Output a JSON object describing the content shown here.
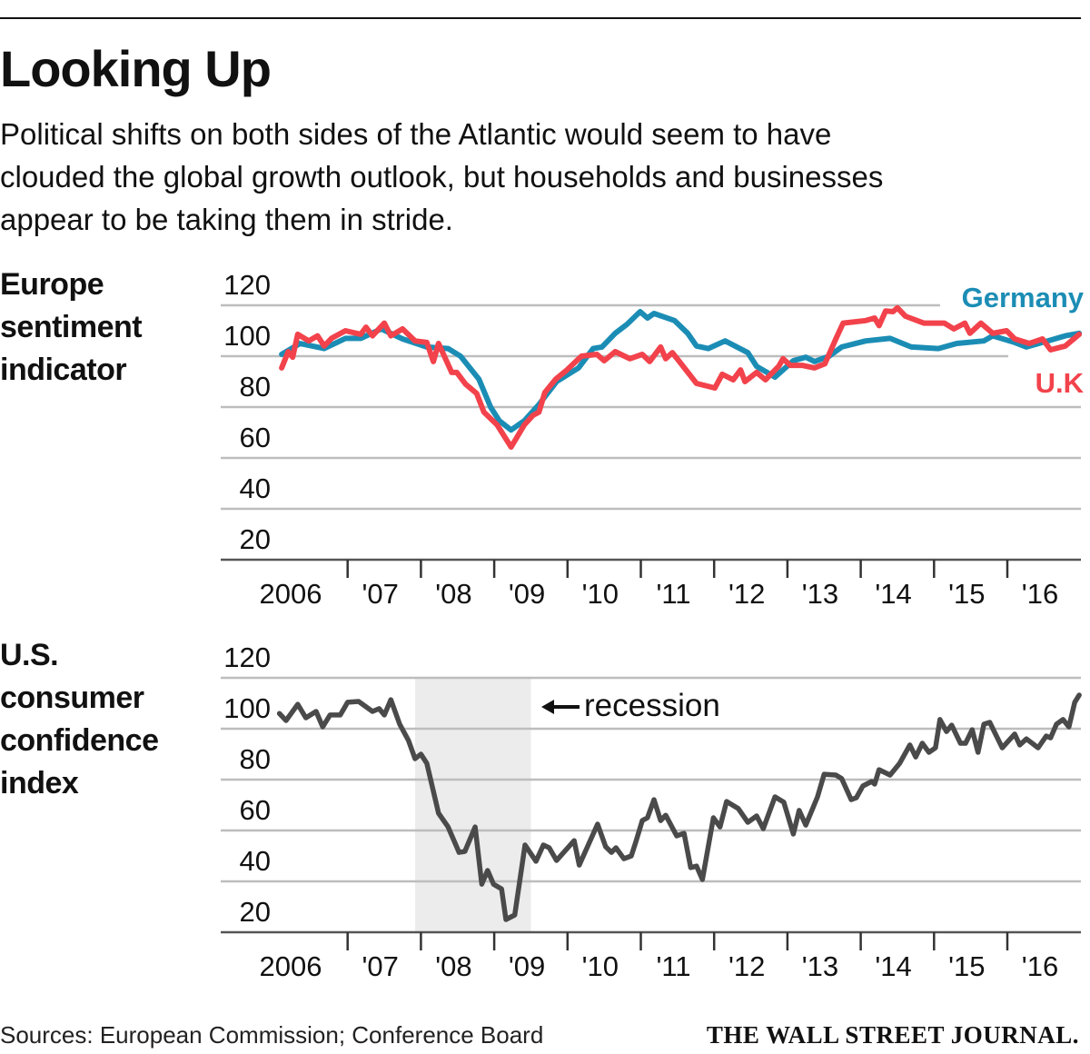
{
  "header": {
    "title": "Looking Up",
    "subtitle_lines": [
      "Political shifts on both sides of the Atlantic would seem to have",
      "clouded the global growth outlook, but households and businesses",
      "appear to be taking them in stride."
    ]
  },
  "footer": {
    "sources": "Sources: European Commission; Conference Board",
    "publisher": "THE WALL STREET JOURNAL."
  },
  "chart_data": [
    {
      "type": "line",
      "title_lines": [
        "Europe",
        "sentiment",
        "indicator"
      ],
      "xlabel": "",
      "ylabel": "",
      "ylim": [
        20,
        120
      ],
      "yticks": [
        120,
        100,
        80,
        60,
        40,
        20
      ],
      "ytick_labels": [
        "120",
        "100",
        "80",
        "60",
        "40",
        "20"
      ],
      "xlim": [
        2006,
        2017
      ],
      "xtick_labels": [
        "2006",
        "'07",
        "'08",
        "'09",
        "'10",
        "'11",
        "'12",
        "'13",
        "'14",
        "'15",
        "'16"
      ],
      "grid": true,
      "legend_placement": "right, inline labels",
      "series": [
        {
          "name": "Germany",
          "color": "#1b8db5",
          "points": [
            [
              2006.1,
              100.7
            ],
            [
              2006.35,
              105
            ],
            [
              2006.68,
              103
            ],
            [
              2006.97,
              107
            ],
            [
              2007.18,
              107
            ],
            [
              2007.46,
              110.7
            ],
            [
              2007.75,
              106.8
            ],
            [
              2008.08,
              103.6
            ],
            [
              2008.37,
              103
            ],
            [
              2008.54,
              100
            ],
            [
              2008.79,
              91
            ],
            [
              2008.95,
              80
            ],
            [
              2009.07,
              74.6
            ],
            [
              2009.23,
              71
            ],
            [
              2009.41,
              74.6
            ],
            [
              2009.61,
              81
            ],
            [
              2009.85,
              90
            ],
            [
              2010.15,
              95.4
            ],
            [
              2010.35,
              103
            ],
            [
              2010.47,
              103.6
            ],
            [
              2010.65,
              109
            ],
            [
              2010.81,
              112.5
            ],
            [
              2010.99,
              117.5
            ],
            [
              2011.09,
              115
            ],
            [
              2011.18,
              116.8
            ],
            [
              2011.46,
              114
            ],
            [
              2011.64,
              109
            ],
            [
              2011.76,
              104
            ],
            [
              2011.92,
              103
            ],
            [
              2012.15,
              106
            ],
            [
              2012.46,
              101.4
            ],
            [
              2012.58,
              96
            ],
            [
              2012.83,
              91.8
            ],
            [
              2013.08,
              98.2
            ],
            [
              2013.25,
              99.6
            ],
            [
              2013.37,
              97.9
            ],
            [
              2013.57,
              100
            ],
            [
              2013.74,
              103.6
            ],
            [
              2014.07,
              106
            ],
            [
              2014.4,
              107
            ],
            [
              2014.69,
              103.6
            ],
            [
              2015.06,
              103
            ],
            [
              2015.31,
              105
            ],
            [
              2015.68,
              106
            ],
            [
              2015.8,
              108
            ],
            [
              2016.1,
              105.4
            ],
            [
              2016.26,
              103.6
            ],
            [
              2016.55,
              106
            ],
            [
              2016.79,
              108
            ],
            [
              2016.98,
              109
            ]
          ]
        },
        {
          "name": "U.K",
          "color": "#f2424b",
          "points": [
            [
              2006.1,
              95.4
            ],
            [
              2006.19,
              101.8
            ],
            [
              2006.25,
              99.6
            ],
            [
              2006.32,
              108.6
            ],
            [
              2006.47,
              106
            ],
            [
              2006.59,
              108
            ],
            [
              2006.68,
              104
            ],
            [
              2006.78,
              107
            ],
            [
              2006.97,
              110
            ],
            [
              2007.18,
              108.6
            ],
            [
              2007.25,
              111.4
            ],
            [
              2007.34,
              108
            ],
            [
              2007.5,
              113
            ],
            [
              2007.59,
              108
            ],
            [
              2007.75,
              110.7
            ],
            [
              2007.92,
              106
            ],
            [
              2008.08,
              105.4
            ],
            [
              2008.17,
              97.9
            ],
            [
              2008.24,
              105
            ],
            [
              2008.42,
              93.6
            ],
            [
              2008.49,
              93.6
            ],
            [
              2008.61,
              89
            ],
            [
              2008.76,
              85.4
            ],
            [
              2008.86,
              78
            ],
            [
              2009.04,
              73
            ],
            [
              2009.23,
              64.3
            ],
            [
              2009.41,
              73
            ],
            [
              2009.53,
              76.8
            ],
            [
              2009.61,
              78
            ],
            [
              2009.69,
              85.7
            ],
            [
              2009.84,
              91
            ],
            [
              2009.98,
              94.3
            ],
            [
              2010.19,
              100
            ],
            [
              2010.4,
              100.7
            ],
            [
              2010.5,
              98.2
            ],
            [
              2010.65,
              101.8
            ],
            [
              2010.85,
              99
            ],
            [
              2011.02,
              100.7
            ],
            [
              2011.12,
              97.9
            ],
            [
              2011.27,
              103.6
            ],
            [
              2011.34,
              99
            ],
            [
              2011.43,
              101.4
            ],
            [
              2011.55,
              97
            ],
            [
              2011.76,
              89.3
            ],
            [
              2012.01,
              87.5
            ],
            [
              2012.11,
              92.9
            ],
            [
              2012.26,
              90.7
            ],
            [
              2012.36,
              94.6
            ],
            [
              2012.42,
              90
            ],
            [
              2012.58,
              93.6
            ],
            [
              2012.7,
              90.7
            ],
            [
              2012.88,
              96
            ],
            [
              2012.94,
              99
            ],
            [
              2013.04,
              96.4
            ],
            [
              2013.2,
              96.4
            ],
            [
              2013.37,
              95.4
            ],
            [
              2013.51,
              97
            ],
            [
              2013.66,
              106.8
            ],
            [
              2013.76,
              113
            ],
            [
              2014.07,
              114
            ],
            [
              2014.19,
              115
            ],
            [
              2014.25,
              112
            ],
            [
              2014.34,
              117.8
            ],
            [
              2014.44,
              117.5
            ],
            [
              2014.5,
              119
            ],
            [
              2014.61,
              115.7
            ],
            [
              2014.86,
              113
            ],
            [
              2015.14,
              113
            ],
            [
              2015.27,
              110.7
            ],
            [
              2015.42,
              113
            ],
            [
              2015.49,
              109
            ],
            [
              2015.64,
              113
            ],
            [
              2015.8,
              109
            ],
            [
              2015.99,
              110
            ],
            [
              2016.1,
              106.8
            ],
            [
              2016.3,
              105
            ],
            [
              2016.48,
              106.8
            ],
            [
              2016.59,
              102.5
            ],
            [
              2016.79,
              104
            ],
            [
              2016.98,
              108.6
            ]
          ]
        }
      ]
    },
    {
      "type": "line",
      "title_lines": [
        "U.S.",
        "consumer",
        "confidence",
        "index"
      ],
      "xlabel": "",
      "ylabel": "",
      "ylim": [
        20,
        120
      ],
      "yticks": [
        120,
        100,
        80,
        60,
        40,
        20
      ],
      "ytick_labels": [
        "120",
        "100",
        "80",
        "60",
        "40",
        "20"
      ],
      "xlim": [
        2006,
        2017
      ],
      "xtick_labels": [
        "2006",
        "'07",
        "'08",
        "'09",
        "'10",
        "'11",
        "'12",
        "'13",
        "'14",
        "'15",
        "'16"
      ],
      "grid": true,
      "annotation": "recession",
      "recession": [
        2007.92,
        2009.5
      ],
      "recession_color": "#ececec",
      "series": [
        {
          "name": "U.S. consumer confidence",
          "color": "#4a4a4a",
          "points": [
            [
              2006.07,
              106
            ],
            [
              2006.16,
              103.2
            ],
            [
              2006.32,
              109.6
            ],
            [
              2006.43,
              104.3
            ],
            [
              2006.57,
              106.8
            ],
            [
              2006.66,
              100.7
            ],
            [
              2006.76,
              105.4
            ],
            [
              2006.9,
              105.4
            ],
            [
              2007.0,
              110.4
            ],
            [
              2007.15,
              110.7
            ],
            [
              2007.34,
              106.8
            ],
            [
              2007.43,
              107.9
            ],
            [
              2007.5,
              105.4
            ],
            [
              2007.59,
              111.4
            ],
            [
              2007.71,
              101.8
            ],
            [
              2007.83,
              95.4
            ],
            [
              2007.92,
              88.2
            ],
            [
              2008.0,
              90
            ],
            [
              2008.08,
              86.4
            ],
            [
              2008.24,
              66.8
            ],
            [
              2008.37,
              61.4
            ],
            [
              2008.52,
              51.4
            ],
            [
              2008.6,
              51.8
            ],
            [
              2008.74,
              61.4
            ],
            [
              2008.83,
              38.9
            ],
            [
              2008.91,
              44.3
            ],
            [
              2008.99,
              38.9
            ],
            [
              2009.1,
              37
            ],
            [
              2009.16,
              25
            ],
            [
              2009.28,
              26.8
            ],
            [
              2009.42,
              54.3
            ],
            [
              2009.57,
              47.9
            ],
            [
              2009.67,
              54.3
            ],
            [
              2009.75,
              53.2
            ],
            [
              2009.85,
              48.2
            ],
            [
              2010.09,
              56
            ],
            [
              2010.16,
              46.4
            ],
            [
              2010.41,
              62.5
            ],
            [
              2010.52,
              53.6
            ],
            [
              2010.6,
              51.4
            ],
            [
              2010.66,
              53.2
            ],
            [
              2010.77,
              48.9
            ],
            [
              2010.87,
              50
            ],
            [
              2010.93,
              55.4
            ],
            [
              2011.02,
              63.9
            ],
            [
              2011.09,
              65
            ],
            [
              2011.18,
              72.1
            ],
            [
              2011.27,
              63.9
            ],
            [
              2011.34,
              66
            ],
            [
              2011.49,
              57.9
            ],
            [
              2011.59,
              58.9
            ],
            [
              2011.68,
              45.4
            ],
            [
              2011.76,
              46
            ],
            [
              2011.84,
              40.7
            ],
            [
              2011.99,
              65
            ],
            [
              2012.08,
              61.4
            ],
            [
              2012.17,
              71.4
            ],
            [
              2012.33,
              68.6
            ],
            [
              2012.46,
              63.2
            ],
            [
              2012.58,
              65.7
            ],
            [
              2012.67,
              60.7
            ],
            [
              2012.83,
              73.2
            ],
            [
              2012.95,
              71.1
            ],
            [
              2013.08,
              58.6
            ],
            [
              2013.16,
              67.9
            ],
            [
              2013.25,
              62.1
            ],
            [
              2013.41,
              73.2
            ],
            [
              2013.5,
              82.1
            ],
            [
              2013.66,
              81.8
            ],
            [
              2013.74,
              80.4
            ],
            [
              2013.87,
              72.1
            ],
            [
              2013.94,
              72.9
            ],
            [
              2014.03,
              77.5
            ],
            [
              2014.15,
              79.3
            ],
            [
              2014.19,
              78.2
            ],
            [
              2014.25,
              83.9
            ],
            [
              2014.4,
              81.8
            ],
            [
              2014.53,
              86.4
            ],
            [
              2014.67,
              93.6
            ],
            [
              2014.75,
              88.9
            ],
            [
              2014.84,
              94.3
            ],
            [
              2014.93,
              90.7
            ],
            [
              2015.02,
              92.5
            ],
            [
              2015.08,
              103.6
            ],
            [
              2015.17,
              98.9
            ],
            [
              2015.24,
              101.4
            ],
            [
              2015.36,
              94.3
            ],
            [
              2015.43,
              94.3
            ],
            [
              2015.52,
              99.6
            ],
            [
              2015.6,
              90.7
            ],
            [
              2015.68,
              101.8
            ],
            [
              2015.76,
              102.5
            ],
            [
              2015.93,
              92.5
            ],
            [
              2016.1,
              97.9
            ],
            [
              2016.17,
              93.6
            ],
            [
              2016.26,
              96
            ],
            [
              2016.42,
              92.5
            ],
            [
              2016.53,
              97.1
            ],
            [
              2016.59,
              96.4
            ],
            [
              2016.67,
              101.8
            ],
            [
              2016.76,
              103.6
            ],
            [
              2016.84,
              100.7
            ],
            [
              2016.92,
              110.4
            ],
            [
              2016.98,
              113.2
            ]
          ]
        }
      ]
    }
  ]
}
